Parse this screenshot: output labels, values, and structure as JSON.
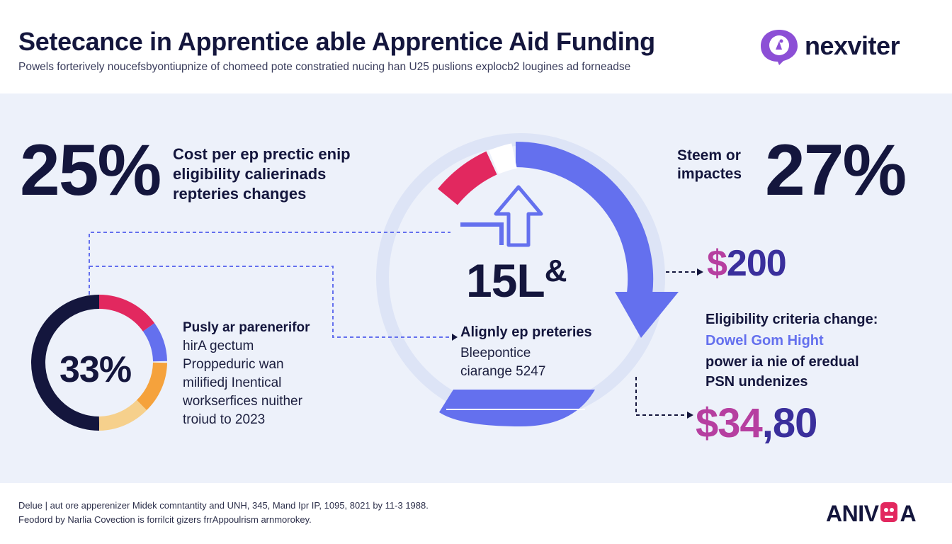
{
  "header": {
    "title": "Setecance in Apprentice able Apprentice Aid Funding",
    "subtitle": "Powels forterively noucefsbyontiupnize of chomeed pote constratied nucing han U25 puslions explocb2 lougines ad forneadse"
  },
  "brand": {
    "name": "nexviter",
    "icon": "chat-bubble-icon"
  },
  "left_stat": {
    "value": "25%",
    "lines": [
      "Cost per ep prectic enip",
      "eligibility calierinads",
      "repteries changes"
    ]
  },
  "right_stat": {
    "value": "27%",
    "lines": [
      "Steem or",
      "impactes"
    ]
  },
  "center": {
    "value": "15L",
    "glyph": "&",
    "label": "Alignly ep preteries",
    "lines": [
      "Bleepontice",
      "ciarange 5247"
    ]
  },
  "donut": {
    "value": "33%",
    "title": "Pusly ar parenerifor",
    "lines": [
      "hirA gectum",
      "Proppeduric wan",
      "milifiedj Inentical",
      "workserfices nuither",
      "troiud to 2023"
    ]
  },
  "amount_top": {
    "symbol": "$",
    "digits": "200"
  },
  "eligibility": {
    "heading": "Eligibility criteria change:",
    "highlight": "Dowel Gom Hight",
    "lines": [
      "power ia nie of eredual",
      "PSN undenizes"
    ]
  },
  "amount_bottom": {
    "symbol": "$34",
    "digits": ",80"
  },
  "footer": {
    "line1": "Delue | aut ore apperenizer Midek comntantity and UNH, 345, Mand Ipr IP, 1095, 8021 by 11-3 1988.",
    "line2": "Feodord by Narlia Covection is forrilcit gizers frrAppoulrism arnmorokey.",
    "logo_left": "ANIV",
    "logo_right": "A"
  },
  "colors": {
    "navy": "#14163d",
    "ring_blue": "#6470ee",
    "pink": "#e2285f",
    "magenta": "#b63fa0",
    "purple_dark": "#3a2f9c",
    "light_ring": "#dde4f6",
    "orange": "#f5a23c",
    "peach": "#f6d08c",
    "brand_purple": "#8c4fd6"
  }
}
